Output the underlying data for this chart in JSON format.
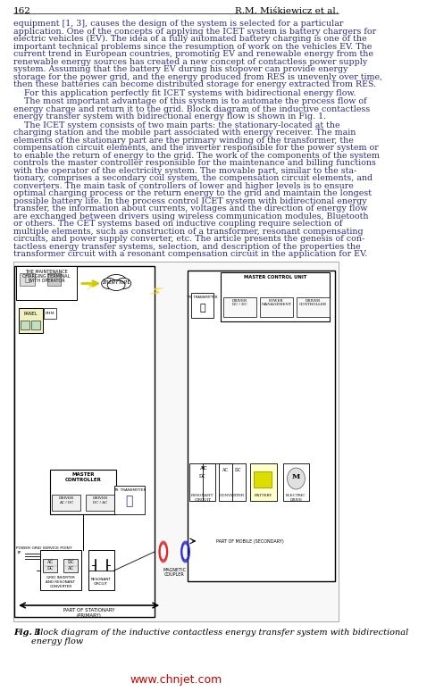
{
  "page_number": "162",
  "author": "R.M. Miśkiewicz et al.",
  "background_color": "#ffffff",
  "text_color": "#000000",
  "body_text_color": "#2b2b8b",
  "fig_label_bold": "Fig. 1",
  "fig_caption": " Block diagram of the inductive contactless energy transfer system with bidirectional\nenergy flow",
  "watermark": "www.chnjet.com",
  "watermark_color": "#cc0000",
  "paragraph1": "equipment [1, 3], causes the design of the system is selected for a particular\napplication. One of the concepts of applying the ICET system is battery chargers for\nelectric vehicles (EV). The idea of a fully automated battery charging is one of the\nimportant technical problems since the resumption of work on the vehicles EV. The\ncurrent trend in European countries, promoting EV and renewable energy from the\nrenewable energy sources has created a new concept of contactless power supply\nsystem. Assuming that the battery EV during his stopover can provide energy\nstorage for the power grid, and the energy produced from RES is unevenly over time,\nthen these batteries can become distributed storage for energy extracted from RES.",
  "paragraph2": "    For this application perfectly fit ICET systems with bidirectional energy flow.",
  "paragraph3": "    The most important advantage of this system is to automate the process flow of\nenergy charge and return it to the grid. Block diagram of the inductive contactless\nenergy transfer system with bidirectional energy flow is shown in Fig. 1.",
  "paragraph4": "    The ICET system consists of two main parts: the stationary-located at the\ncharging station and the mobile part associated with energy receiver. The main\nelements of the stationary part are the primary winding of the transformer, the\ncompensation circuit elements, and the inverter responsible for the power system or\nto enable the return of energy to the grid. The work of the components of the system\ncontrols the master controller responsible for the maintenance and billing functions\nwith the operator of the electricity system. The movable part, similar to the sta-\ntionary, comprises a secondary coil system, the compensation circuit elements, and\nconverters. The main task of controllers of lower and higher levels is to ensure\noptimal charging process or the return energy to the grid and maintain the longest\npossible battery life. In the process control ICET system with bidirectional energy\ntransfer, the information about currents, voltages and the direction of energy flow\nare exchanged between drivers using wireless communication modules, Bluetooth\nor others. The CET systems based on inductive coupling require selection of\nmultiple elements, such as construction of a transformer, resonant compensating\ncircuits, and power supply converter, etc. The article presents the genesis of con-\ntactless energy transfer systems, selection, and description of the properties the\ntransformer circuit with a resonant compensation circuit in the application for EV."
}
